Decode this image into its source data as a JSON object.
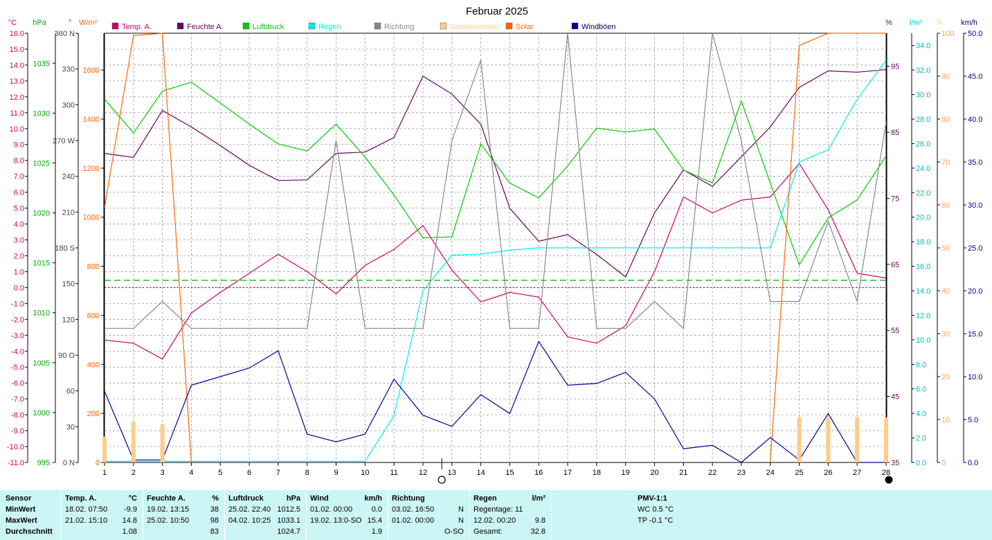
{
  "chart_data": {
    "type": "line",
    "title": "Februar 2025",
    "x": [
      1,
      2,
      3,
      4,
      5,
      6,
      7,
      8,
      9,
      10,
      11,
      12,
      13,
      14,
      15,
      16,
      17,
      18,
      19,
      20,
      21,
      22,
      23,
      24,
      25,
      26,
      27,
      28
    ],
    "axes": {
      "temp": {
        "unit": "°C",
        "ylim": [
          -11,
          16
        ],
        "color": "#cc0066",
        "ticks": [
          "16.0",
          "15.0",
          "14.0",
          "13.0",
          "12.0",
          "11.0",
          "10.0",
          "9.0",
          "8.0",
          "7.0",
          "6.0",
          "5.0",
          "4.0",
          "3.0",
          "2.0",
          "1.0",
          "0.0",
          "-1.0",
          "-2.0",
          "-3.0",
          "-4.0",
          "-5.0",
          "-6.0",
          "-7.0",
          "-8.0",
          "-9.0",
          "-10.0",
          "-11.0"
        ]
      },
      "pressure": {
        "unit": "hPa",
        "ylim": [
          995,
          1038
        ],
        "color": "#00aa00",
        "ticks": [
          "1035",
          "1030",
          "1025",
          "1020",
          "1015",
          "1010",
          "1005",
          "1000",
          "995"
        ]
      },
      "direction": {
        "unit": "°",
        "ylim": [
          0,
          360
        ],
        "color": "#444444",
        "ticks": [
          "360 N",
          "330",
          "300",
          "270 W",
          "240",
          "210",
          "180 S",
          "150",
          "120",
          "90  O",
          "60",
          "30",
          "0  N"
        ]
      },
      "solar": {
        "unit": "W/m²",
        "ylim": [
          0,
          1750
        ],
        "color": "#ff6600",
        "ticks": [
          "1600",
          "1400",
          "1200",
          "1000",
          "800",
          "600",
          "400",
          "200",
          "0"
        ]
      },
      "humidity": {
        "unit": "%",
        "ylim": [
          35,
          100
        ],
        "color": "#660066",
        "ticks": [
          "95",
          "85",
          "75",
          "65",
          "55",
          "45",
          "35"
        ]
      },
      "rain": {
        "unit": "l/m²",
        "ylim": [
          0,
          35
        ],
        "color": "#00cccc",
        "ticks": [
          "34.0",
          "32.0",
          "30.0",
          "28.0",
          "26.0",
          "24.0",
          "22.0",
          "20.0",
          "18.0",
          "16.0",
          "14.0",
          "12.0",
          "10.0",
          "8.0",
          "6.0",
          "4.0",
          "2.0",
          "0.0"
        ]
      },
      "sunshine": {
        "unit": "h",
        "ylim": [
          0,
          100
        ],
        "color": "#ffcc88",
        "ticks": [
          "100",
          "90",
          "80",
          "70",
          "60",
          "50",
          "40",
          "30",
          "20",
          "10",
          "0"
        ]
      },
      "wind": {
        "unit": "km/h",
        "ylim": [
          0,
          50
        ],
        "color": "#000099",
        "ticks": [
          "50.0",
          "45.0",
          "40.0",
          "35.0",
          "30.0",
          "25.0",
          "20.0",
          "15.0",
          "10.0",
          "5.0",
          "0.0"
        ]
      }
    },
    "legend": [
      {
        "name": "Temp. A.",
        "color": "#cc0066"
      },
      {
        "name": "Feuchte A.",
        "color": "#660066"
      },
      {
        "name": "Luftdruck",
        "color": "#00cc00"
      },
      {
        "name": "Regen",
        "color": "#00eeee"
      },
      {
        "name": "Richtung",
        "color": "#888888"
      },
      {
        "name": "Sonnenschein",
        "color": "#ffcc88"
      },
      {
        "name": "Solar",
        "color": "#ff6600"
      },
      {
        "name": "Windböen",
        "color": "#000099"
      }
    ],
    "series": [
      {
        "name": "Temp. A.",
        "axis": "temp",
        "color": "#cc0066",
        "values": [
          -3.3,
          -3.5,
          -4.5,
          -1.6,
          -0.3,
          0.9,
          2.1,
          1.0,
          -0.4,
          1.4,
          2.4,
          3.9,
          1.1,
          -0.9,
          -0.3,
          -0.6,
          -3.1,
          -3.5,
          -2.4,
          1.0,
          5.7,
          4.7,
          5.5,
          5.7,
          7.8,
          4.9,
          0.9,
          0.6
        ]
      },
      {
        "name": "Feuchte A.",
        "axis": "humidity",
        "color": "#660066",
        "values": [
          81.8,
          81.2,
          88.3,
          85.8,
          83.0,
          80.0,
          77.7,
          77.8,
          81.8,
          82.0,
          84.2,
          93.5,
          90.8,
          86.2,
          73.5,
          68.5,
          69.5,
          66.5,
          63.1,
          72.8,
          79.3,
          76.8,
          81.3,
          85.8,
          91.8,
          94.3,
          94.1,
          94.5
        ]
      },
      {
        "name": "Luftdruck",
        "axis": "pressure",
        "color": "#00cc00",
        "values": [
          1031.4,
          1028.0,
          1032.2,
          1033.1,
          1031.0,
          1028.9,
          1026.9,
          1026.2,
          1028.9,
          1025.6,
          1021.8,
          1017.5,
          1017.6,
          1026.9,
          1023.0,
          1021.5,
          1024.7,
          1028.5,
          1028.1,
          1028.4,
          1024.3,
          1023.0,
          1031.2,
          1023.0,
          1014.8,
          1019.5,
          1021.3,
          1025.7
        ]
      },
      {
        "name": "Regen",
        "axis": "rain",
        "color": "#00eeee",
        "values": [
          0.1,
          0.1,
          0.1,
          0.1,
          0.1,
          0.1,
          0.1,
          0.1,
          0.1,
          0.1,
          3.8,
          14.0,
          16.9,
          17.0,
          17.3,
          17.5,
          17.5,
          17.5,
          17.5,
          17.5,
          17.5,
          17.5,
          17.5,
          17.5,
          24.5,
          25.5,
          29.6,
          32.8
        ]
      },
      {
        "name": "Richtung",
        "axis": "direction",
        "color": "#888888",
        "values": [
          112.5,
          112.5,
          135,
          112.5,
          112.5,
          112.5,
          112.5,
          112.5,
          270,
          112.5,
          112.5,
          112.5,
          270,
          337.5,
          112.5,
          112.5,
          360,
          112.5,
          112.5,
          135,
          112.5,
          360,
          270,
          135,
          135,
          202.5,
          135,
          285
        ]
      },
      {
        "name": "Solar",
        "axis": "solar",
        "color": "#ff6600",
        "values": [
          1040,
          1740,
          1750,
          0,
          null,
          null,
          null,
          null,
          null,
          null,
          null,
          null,
          null,
          null,
          null,
          null,
          null,
          null,
          null,
          null,
          null,
          null,
          null,
          0,
          1700,
          1750,
          1750,
          1750
        ]
      },
      {
        "name": "Windböen",
        "axis": "wind",
        "color": "#000099",
        "values": [
          8.3,
          0.3,
          0.3,
          9.0,
          10.0,
          11.0,
          13.0,
          3.3,
          2.4,
          3.3,
          9.7,
          5.5,
          4.2,
          7.9,
          5.7,
          14.1,
          9.0,
          9.2,
          10.5,
          7.4,
          1.6,
          2.0,
          0.0,
          2.9,
          0.3,
          5.7,
          0.0,
          0.0
        ]
      },
      {
        "name": "Sonnenschein",
        "axis": "sunshine",
        "color": "#ffcc88",
        "values": [
          6,
          9.5,
          9,
          0,
          0,
          0,
          0,
          0,
          0,
          0,
          0,
          0,
          0,
          0,
          0,
          0,
          0,
          0,
          0,
          0,
          0,
          0,
          0,
          0,
          10.5,
          10.5,
          10.5,
          10.5
        ]
      }
    ],
    "reference_lines": [
      {
        "axis": "temp",
        "value": 0,
        "color": "#cc0066"
      },
      {
        "axis": "pressure",
        "value": 1013.25,
        "color": "#00aa00"
      }
    ],
    "x_markers": [
      {
        "x": 12.65,
        "symbol": "new-moon"
      },
      {
        "x": 28,
        "symbol": "full-moon"
      }
    ],
    "grid": true
  },
  "summary": {
    "sensor": {
      "header": "Sensor",
      "min": "MinWert",
      "max": "MaxWert",
      "avg": "Durchschnitt"
    },
    "temp": {
      "header": "Temp. A.",
      "unit": "°C",
      "min_time": "18.02.  07:50",
      "min_val": "-9.9",
      "max_time": "21.02.  15:10",
      "max_val": "14.8",
      "avg": "1.08"
    },
    "humidity": {
      "header": "Feuchte A.",
      "unit": "%",
      "min_time": "19.02.  13:15",
      "min_val": "38",
      "max_time": "25.02.  10:50",
      "max_val": "98",
      "avg": "83"
    },
    "pressure": {
      "header": "Luftdruck",
      "unit": "hPa",
      "min_time": "25.02.  22:40",
      "min_val": "1012.5",
      "max_time": "04.02.  10:25",
      "max_val": "1033.1",
      "avg": "1024.7"
    },
    "wind": {
      "header": "Wind",
      "unit": "km/h",
      "min_time": "01.02.  00:00",
      "min_val": "0.0",
      "max_time": "19.02.  13:0-SO",
      "max_val": "15.4",
      "avg": "1.9"
    },
    "direction": {
      "header": "Richtung",
      "min_time": "03.02.  16:50",
      "min_val": "N",
      "max_time": "01.02.  00:00",
      "max_val": "N",
      "avg": "O-SO"
    },
    "rain": {
      "header": "Regen",
      "unit": "l/m²",
      "days_label": "Regentage: 11",
      "max_time": "12.02.  00:20",
      "max_val": "9.8",
      "total_label": "Gesamt:",
      "total_val": "32.8"
    },
    "pmv": {
      "header": "PMV-1:1",
      "wc": "WC 0.5 °C",
      "tp": "TP -0.1 °C"
    }
  }
}
